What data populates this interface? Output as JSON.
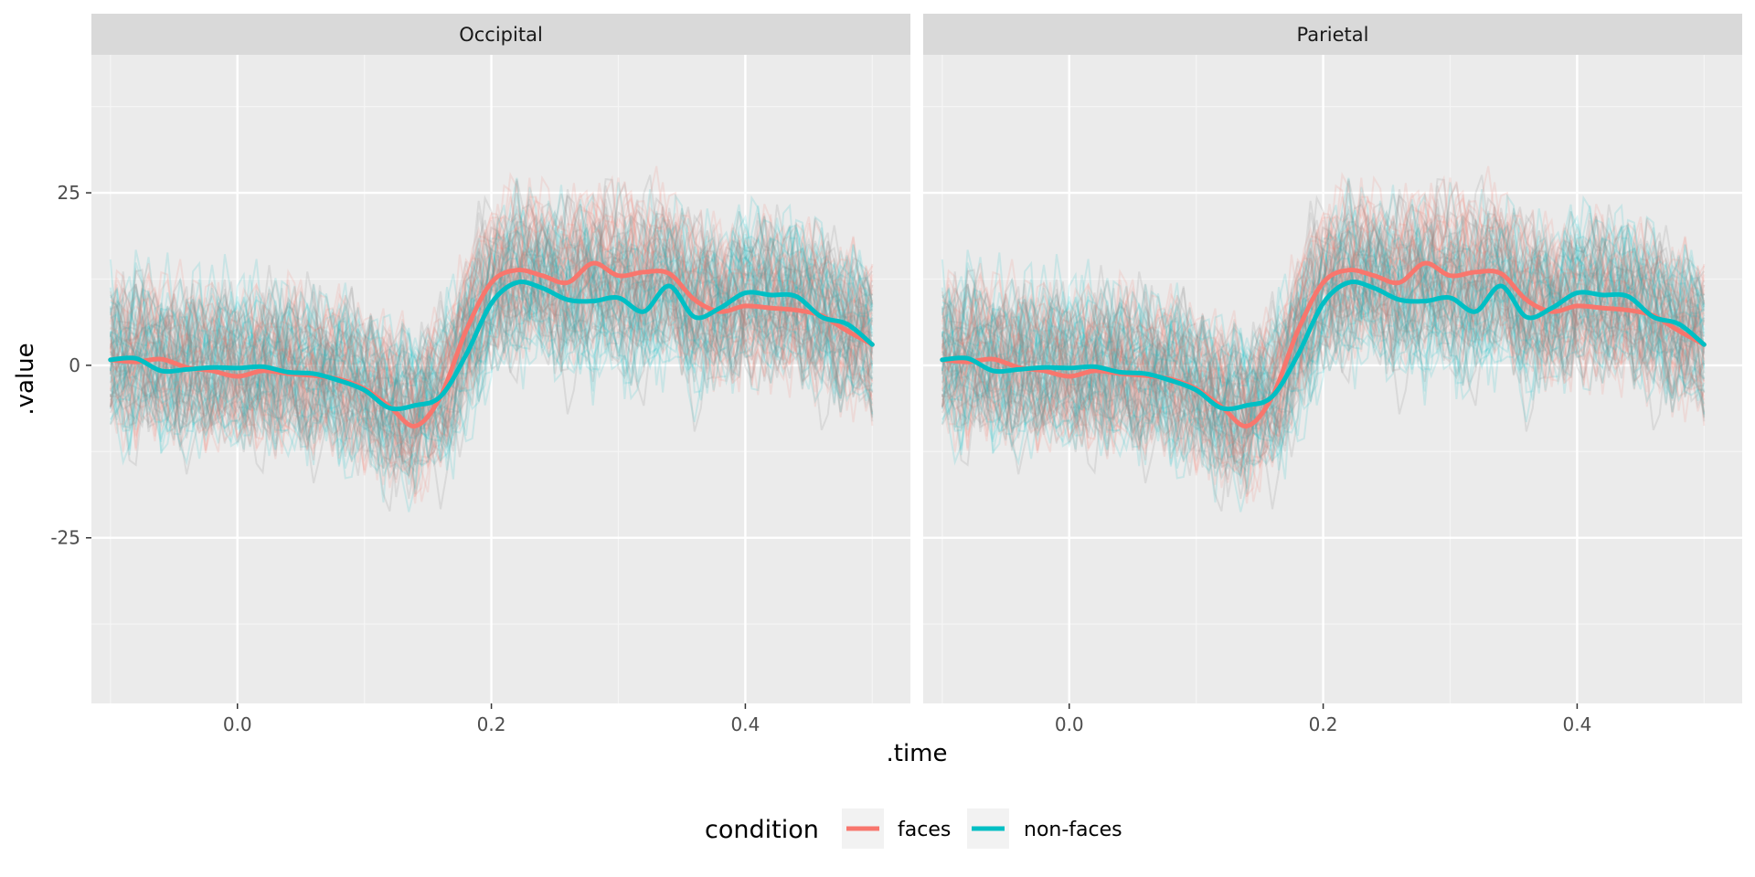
{
  "chart_data": [
    {
      "type": "line",
      "panel": "Occipital",
      "xlabel": ".time",
      "ylabel": ".value",
      "xlim": [
        -0.115,
        0.53
      ],
      "ylim": [
        -49,
        45
      ],
      "x_ticks": [
        0.0,
        0.2,
        0.4
      ],
      "x_tick_labels": [
        "0.0",
        "0.2",
        "0.4"
      ],
      "y_ticks": [
        25,
        0,
        -25
      ],
      "y_tick_labels": [
        "25",
        "0",
        "-25"
      ],
      "grid": true,
      "legend_position": "bottom",
      "series": [
        {
          "name": "faces",
          "x": [
            -0.1,
            -0.08,
            -0.06,
            -0.04,
            -0.02,
            0.0,
            0.02,
            0.04,
            0.06,
            0.08,
            0.1,
            0.12,
            0.14,
            0.16,
            0.18,
            0.2,
            0.22,
            0.24,
            0.26,
            0.28,
            0.3,
            0.32,
            0.34,
            0.36,
            0.38,
            0.4,
            0.42,
            0.44,
            0.46,
            0.48,
            0.5
          ],
          "values": [
            0.8,
            0.5,
            0.9,
            -0.3,
            -0.8,
            -1.6,
            -0.8,
            -1.2,
            -1.5,
            -2.0,
            -3.4,
            -6.0,
            -8.8,
            -4.5,
            5.0,
            12.0,
            13.8,
            13.0,
            12.0,
            14.8,
            13.0,
            13.5,
            13.3,
            9.5,
            7.8,
            8.6,
            8.3,
            8.0,
            7.2,
            5.0,
            3.0
          ]
        },
        {
          "name": "non-faces",
          "x": [
            -0.1,
            -0.08,
            -0.06,
            -0.04,
            -0.02,
            0.0,
            0.02,
            0.04,
            0.06,
            0.08,
            0.1,
            0.12,
            0.14,
            0.16,
            0.18,
            0.2,
            0.22,
            0.24,
            0.26,
            0.28,
            0.3,
            0.32,
            0.34,
            0.36,
            0.38,
            0.4,
            0.42,
            0.44,
            0.46,
            0.48,
            0.5
          ],
          "values": [
            0.8,
            1.0,
            -0.8,
            -0.6,
            -0.3,
            -0.4,
            -0.2,
            -1.0,
            -1.2,
            -2.2,
            -3.6,
            -6.2,
            -5.8,
            -4.5,
            1.5,
            9.0,
            12.0,
            11.2,
            9.5,
            9.3,
            9.8,
            7.8,
            11.5,
            7.0,
            8.3,
            10.5,
            10.2,
            10.0,
            7.0,
            6.0,
            3.0
          ]
        }
      ]
    },
    {
      "type": "line",
      "panel": "Parietal",
      "xlabel": ".time",
      "ylabel": ".value",
      "xlim": [
        -0.115,
        0.53
      ],
      "ylim": [
        -49,
        45
      ],
      "x_ticks": [
        0.0,
        0.2,
        0.4
      ],
      "x_tick_labels": [
        "0.0",
        "0.2",
        "0.4"
      ],
      "y_ticks": [
        25,
        0,
        -25
      ],
      "y_tick_labels": [
        "25",
        "0",
        "-25"
      ],
      "grid": true,
      "legend_position": "bottom",
      "series": [
        {
          "name": "faces",
          "x": [
            -0.1,
            -0.08,
            -0.06,
            -0.04,
            -0.02,
            0.0,
            0.02,
            0.04,
            0.06,
            0.08,
            0.1,
            0.12,
            0.14,
            0.16,
            0.18,
            0.2,
            0.22,
            0.24,
            0.26,
            0.28,
            0.3,
            0.32,
            0.34,
            0.36,
            0.38,
            0.4,
            0.42,
            0.44,
            0.46,
            0.48,
            0.5
          ],
          "values": [
            0.8,
            0.5,
            0.9,
            -0.3,
            -0.8,
            -1.6,
            -0.8,
            -1.2,
            -1.5,
            -2.0,
            -3.4,
            -6.0,
            -8.8,
            -4.5,
            5.0,
            12.0,
            13.8,
            13.0,
            12.0,
            14.8,
            13.0,
            13.5,
            13.3,
            9.5,
            7.8,
            8.6,
            8.3,
            8.0,
            7.2,
            5.0,
            3.0
          ]
        },
        {
          "name": "non-faces",
          "x": [
            -0.1,
            -0.08,
            -0.06,
            -0.04,
            -0.02,
            0.0,
            0.02,
            0.04,
            0.06,
            0.08,
            0.1,
            0.12,
            0.14,
            0.16,
            0.18,
            0.2,
            0.22,
            0.24,
            0.26,
            0.28,
            0.3,
            0.32,
            0.34,
            0.36,
            0.38,
            0.4,
            0.42,
            0.44,
            0.46,
            0.48,
            0.5
          ],
          "values": [
            0.8,
            1.0,
            -0.8,
            -0.6,
            -0.3,
            -0.4,
            -0.2,
            -1.0,
            -1.2,
            -2.2,
            -3.6,
            -6.2,
            -5.8,
            -4.5,
            1.5,
            9.0,
            12.0,
            11.2,
            9.5,
            9.3,
            9.8,
            7.8,
            11.5,
            7.0,
            8.3,
            10.5,
            10.2,
            10.0,
            7.0,
            6.0,
            3.0
          ]
        }
      ]
    }
  ],
  "legend": {
    "title": "condition",
    "items": [
      {
        "label": "faces",
        "color": "#F8766D"
      },
      {
        "label": "non-faces",
        "color": "#00BFC4"
      }
    ]
  },
  "colors": {
    "faces": "#F8766D",
    "non_faces": "#00BFC4",
    "grid_grey": "#E6E6E6",
    "mixed_trace": "#8C8C8C"
  }
}
